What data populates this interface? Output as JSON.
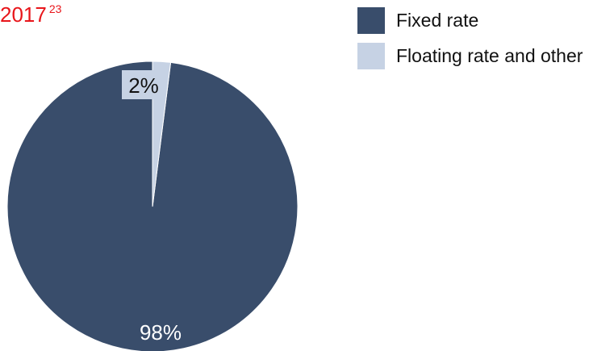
{
  "title": "2017",
  "title_superscript": "23",
  "chart_data": {
    "type": "pie",
    "categories": [
      "Fixed rate",
      "Floating rate and other"
    ],
    "values": [
      98,
      2
    ],
    "labels": [
      "98%",
      "2%"
    ],
    "colors": [
      "#394d6b",
      "#c6d2e4"
    ],
    "legend_position": "top-right"
  },
  "legend": {
    "items": [
      {
        "label": "Fixed rate",
        "color": "#394d6b"
      },
      {
        "label": "Floating rate and other",
        "color": "#c6d2e4"
      }
    ]
  }
}
